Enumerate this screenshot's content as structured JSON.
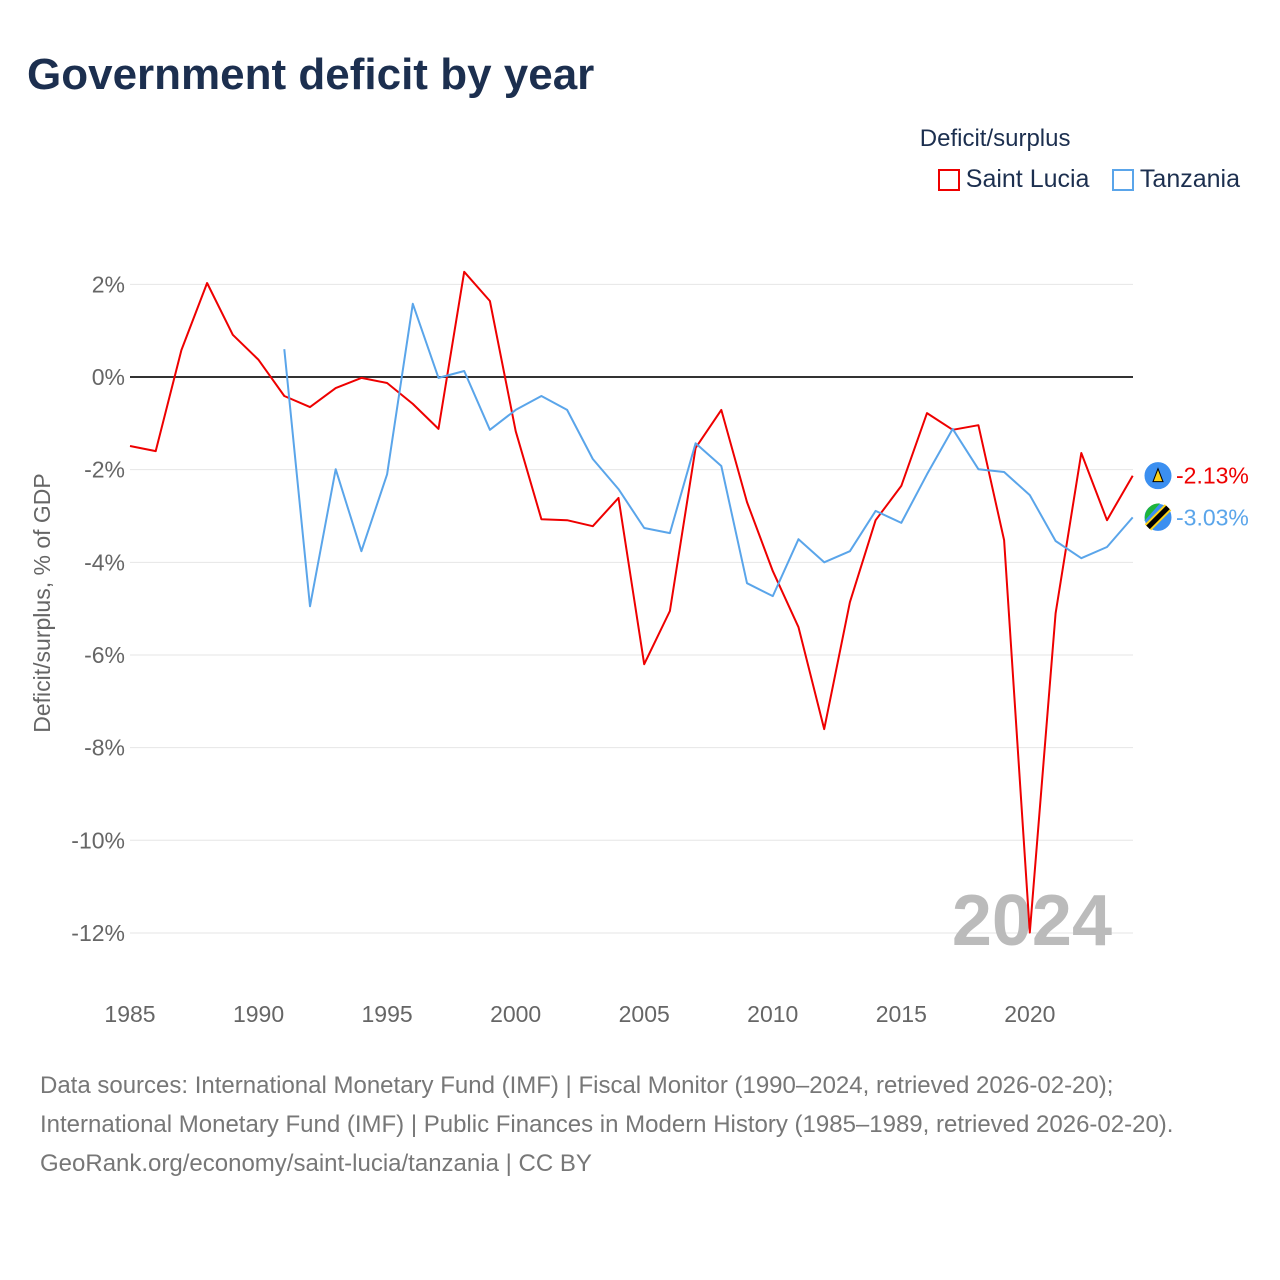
{
  "title": "Government deficit by year",
  "footer": {
    "sources": "Data sources: International Monetary Fund (IMF) | Fiscal Monitor (1990–2024, retrieved 2026-02-20); International Monetary Fund (IMF) | Public Finances in Modern History (1985–1989, retrieved 2026-02-20).",
    "credit": "GeoRank.org/economy/saint-lucia/tanzania | CC BY"
  },
  "chart_data": {
    "type": "line",
    "title": "Government deficit by year",
    "xlabel": "",
    "ylabel": "Deficit/surplus, % of GDP",
    "legend_title": "Deficit/surplus",
    "legend_position": "top-right",
    "year_watermark": "2024",
    "xlim": [
      1985,
      2024
    ],
    "ylim": [
      -13,
      2.5
    ],
    "x_ticks": [
      1985,
      1990,
      1995,
      2000,
      2005,
      2010,
      2015,
      2020
    ],
    "x_tick_labels": [
      "1985",
      "1990",
      "1995",
      "2000",
      "2005",
      "2010",
      "2015",
      "2020"
    ],
    "y_ticks": [
      2,
      0,
      -2,
      -4,
      -6,
      -8,
      -10,
      -12
    ],
    "y_tick_labels": [
      "2%",
      "0%",
      "-2%",
      "-4%",
      "-6%",
      "-8%",
      "-10%",
      "-12%"
    ],
    "grid": true,
    "series": [
      {
        "name": "Saint Lucia",
        "color": "#ee0000",
        "end_label": "-2.13%",
        "x_start": 1985,
        "values": [
          -1.49,
          -1.6,
          0.58,
          2.03,
          0.91,
          0.37,
          -0.41,
          -0.65,
          -0.24,
          -0.02,
          -0.13,
          -0.58,
          -1.12,
          2.27,
          1.64,
          -1.17,
          -3.07,
          -3.09,
          -3.22,
          -2.61,
          -6.2,
          -5.05,
          -1.53,
          -0.71,
          -2.7,
          -4.19,
          -5.4,
          -7.6,
          -4.86,
          -3.09,
          -2.35,
          -0.78,
          -1.14,
          -1.04,
          -3.52,
          -11.99,
          -5.1,
          -1.64,
          -3.09,
          -2.13
        ]
      },
      {
        "name": "Tanzania",
        "color": "#5aa5ea",
        "end_label": "-3.03%",
        "x_start": 1991,
        "values": [
          0.6,
          -4.95,
          -1.99,
          -3.76,
          -2.1,
          1.58,
          -0.02,
          0.13,
          -1.14,
          -0.71,
          -0.41,
          -0.71,
          -1.77,
          -2.42,
          -3.26,
          -3.37,
          -1.43,
          -1.92,
          -4.45,
          -4.73,
          -3.5,
          -4.0,
          -3.76,
          -2.89,
          -3.15,
          -2.1,
          -1.12,
          -1.99,
          -2.05,
          -2.55,
          -3.54,
          -3.91,
          -3.67,
          -3.03
        ]
      }
    ]
  }
}
